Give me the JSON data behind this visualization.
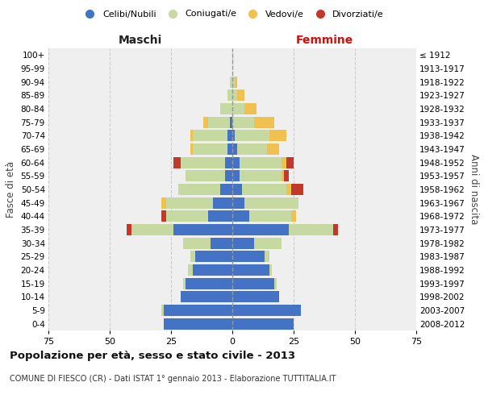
{
  "age_groups": [
    "0-4",
    "5-9",
    "10-14",
    "15-19",
    "20-24",
    "25-29",
    "30-34",
    "35-39",
    "40-44",
    "45-49",
    "50-54",
    "55-59",
    "60-64",
    "65-69",
    "70-74",
    "75-79",
    "80-84",
    "85-89",
    "90-94",
    "95-99",
    "100+"
  ],
  "birth_years": [
    "2008-2012",
    "2003-2007",
    "1998-2002",
    "1993-1997",
    "1988-1992",
    "1983-1987",
    "1978-1982",
    "1973-1977",
    "1968-1972",
    "1963-1967",
    "1958-1962",
    "1953-1957",
    "1948-1952",
    "1943-1947",
    "1938-1942",
    "1933-1937",
    "1928-1932",
    "1923-1927",
    "1918-1922",
    "1913-1917",
    "≤ 1912"
  ],
  "maschi": {
    "celibi": [
      28,
      28,
      21,
      19,
      16,
      15,
      9,
      24,
      10,
      8,
      5,
      3,
      3,
      2,
      2,
      1,
      0,
      0,
      0,
      0,
      0
    ],
    "coniugati": [
      0,
      1,
      0,
      1,
      2,
      2,
      11,
      17,
      17,
      19,
      17,
      16,
      18,
      14,
      14,
      9,
      5,
      2,
      1,
      0,
      0
    ],
    "vedovi": [
      0,
      0,
      0,
      0,
      0,
      0,
      0,
      0,
      0,
      2,
      0,
      0,
      0,
      1,
      1,
      2,
      0,
      0,
      0,
      0,
      0
    ],
    "divorziati": [
      0,
      0,
      0,
      0,
      0,
      0,
      0,
      2,
      2,
      0,
      0,
      0,
      3,
      0,
      0,
      0,
      0,
      0,
      0,
      0,
      0
    ]
  },
  "femmine": {
    "nubili": [
      25,
      28,
      19,
      17,
      15,
      13,
      9,
      23,
      7,
      5,
      4,
      3,
      3,
      2,
      1,
      0,
      0,
      0,
      0,
      0,
      0
    ],
    "coniugate": [
      0,
      0,
      0,
      1,
      1,
      2,
      11,
      18,
      17,
      22,
      18,
      17,
      17,
      12,
      14,
      9,
      5,
      2,
      1,
      0,
      0
    ],
    "vedove": [
      0,
      0,
      0,
      0,
      0,
      0,
      0,
      0,
      2,
      0,
      2,
      1,
      2,
      5,
      7,
      8,
      5,
      3,
      1,
      0,
      0
    ],
    "divorziate": [
      0,
      0,
      0,
      0,
      0,
      0,
      0,
      2,
      0,
      0,
      5,
      2,
      3,
      0,
      0,
      0,
      0,
      0,
      0,
      0,
      0
    ]
  },
  "colors": {
    "celibi": "#4472C4",
    "coniugati": "#C5D9A0",
    "vedovi": "#F0C050",
    "divorziati": "#C0392B"
  },
  "xlim": 75,
  "title": "Popolazione per età, sesso e stato civile - 2013",
  "subtitle": "COMUNE DI FIESCO (CR) - Dati ISTAT 1° gennaio 2013 - Elaborazione TUTTITALIA.IT",
  "xlabel_left": "Maschi",
  "xlabel_right": "Femmine",
  "ylabel_left": "Fasce di età",
  "ylabel_right": "Anni di nascita",
  "legend_labels": [
    "Celibi/Nubili",
    "Coniugati/e",
    "Vedovi/e",
    "Divorziati/e"
  ],
  "bg_color": "#ffffff",
  "plot_bg_color": "#efefef",
  "grid_color": "#cccccc"
}
